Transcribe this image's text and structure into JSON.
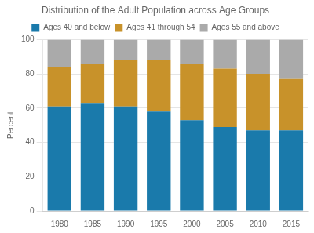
{
  "chart_data": {
    "type": "bar",
    "title": "Distribution of the Adult Population across Age Groups",
    "ylabel": "Percent",
    "categories": [
      "1980",
      "1985",
      "1990",
      "1995",
      "2000",
      "2005",
      "2010",
      "2015"
    ],
    "series": [
      {
        "name": "Ages 40 and below",
        "color": "#1a7aab",
        "values": [
          61,
          63,
          61,
          58,
          53,
          49,
          47,
          47
        ]
      },
      {
        "name": "Ages 41 through 54",
        "color": "#c8922a",
        "values": [
          23,
          23,
          27,
          30,
          33,
          34,
          33,
          30
        ]
      },
      {
        "name": "Ages 55 and above",
        "color": "#aaaaaa",
        "values": [
          16,
          14,
          12,
          12,
          14,
          17,
          20,
          23
        ]
      }
    ],
    "stacked": true,
    "ylim": [
      0,
      100
    ],
    "yticks": [
      0,
      20,
      40,
      60,
      80,
      100
    ],
    "grid": true,
    "legend": "top"
  }
}
